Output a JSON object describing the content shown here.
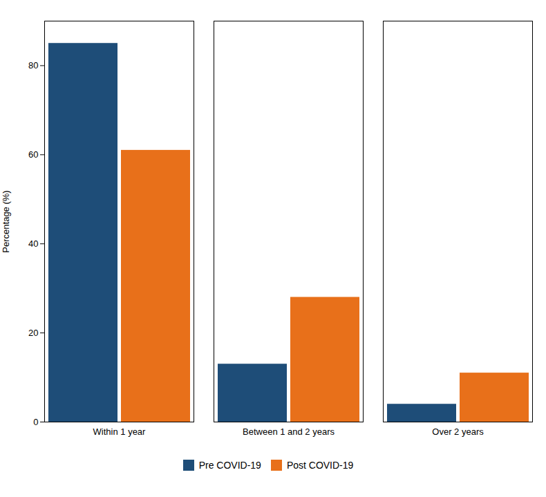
{
  "chart_data": {
    "type": "bar",
    "categories": [
      "Within 1 year",
      "Between 1 and 2 years",
      "Over 2 years"
    ],
    "series": [
      {
        "name": "Pre COVID-19",
        "color": "#1e4d78",
        "values": [
          85,
          13,
          4
        ]
      },
      {
        "name": "Post COVID-19",
        "color": "#e8701a",
        "values": [
          61,
          28,
          11
        ]
      }
    ],
    "ylabel": "Percentage (%)",
    "ylim": [
      0,
      90
    ],
    "yticks": [
      0,
      20,
      40,
      60,
      80
    ],
    "grid": false,
    "legend": "bottom"
  }
}
